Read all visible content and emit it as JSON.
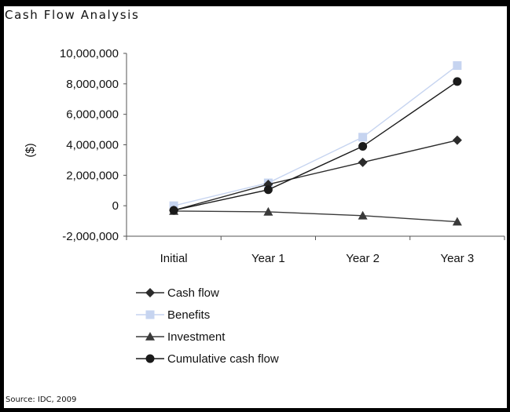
{
  "title": "Cash Flow Analysis",
  "source": "Source: IDC, 2009",
  "chart_data": {
    "type": "line",
    "categories": [
      "Initial",
      "Year 1",
      "Year 2",
      "Year 3"
    ],
    "ylabel": "($)",
    "xlabel": "",
    "ylim": [
      -2000000,
      10000000
    ],
    "yticks": [
      {
        "value": 10000000,
        "label": "10,000,000"
      },
      {
        "value": 8000000,
        "label": "8,000,000"
      },
      {
        "value": 6000000,
        "label": "6,000,000"
      },
      {
        "value": 4000000,
        "label": "4,000,000"
      },
      {
        "value": 2000000,
        "label": "2,000,000"
      },
      {
        "value": 0,
        "label": "0"
      },
      {
        "value": -2000000,
        "label": "-2,000,000"
      }
    ],
    "grid": false,
    "legend_position": "bottom",
    "series": [
      {
        "name": "Cash flow",
        "marker": "diamond",
        "color": "#2b2b2b",
        "values": [
          -300000,
          1400000,
          2850000,
          4300000
        ]
      },
      {
        "name": "Benefits",
        "marker": "square",
        "color": "#c6d4f0",
        "values": [
          0,
          1500000,
          4500000,
          9200000
        ]
      },
      {
        "name": "Investment",
        "marker": "triangle",
        "color": "#3a3a3a",
        "values": [
          -350000,
          -400000,
          -650000,
          -1050000
        ]
      },
      {
        "name": "Cumulative cash flow",
        "marker": "circle",
        "color": "#1a1a1a",
        "values": [
          -300000,
          1050000,
          3900000,
          8150000
        ]
      }
    ]
  }
}
